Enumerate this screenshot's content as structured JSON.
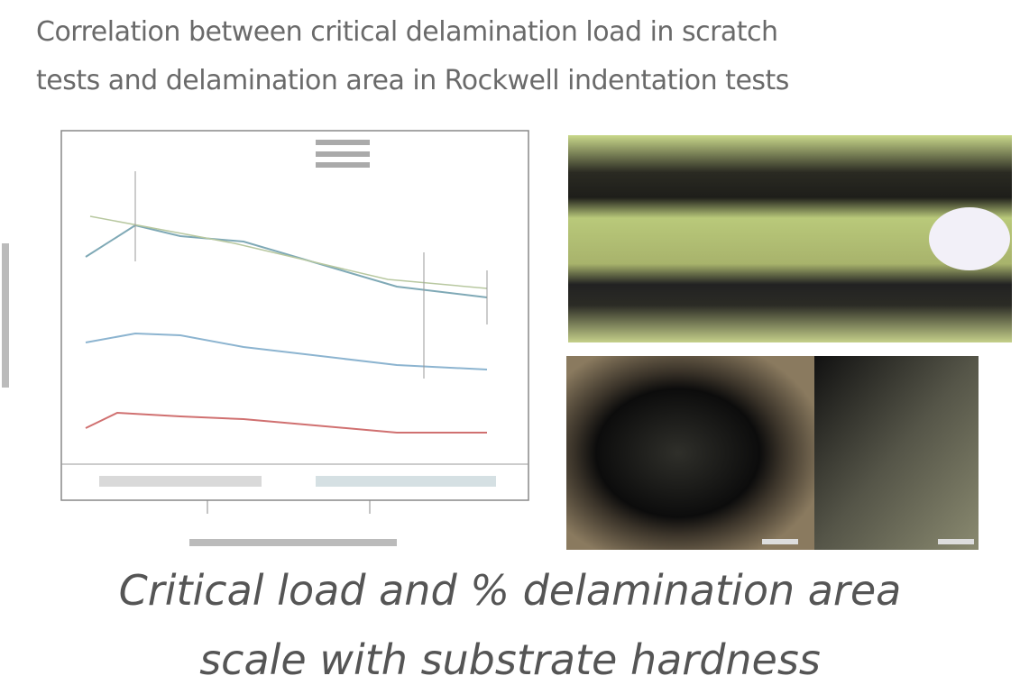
{
  "header": {
    "title_lines": [
      "Correlation between critical delamination load in scratch",
      "tests and delamination area in Rockwell indentation tests"
    ]
  },
  "caption": {
    "lines": [
      "Critical load and % delamination area",
      "scale with substrate hardness"
    ]
  }
}
